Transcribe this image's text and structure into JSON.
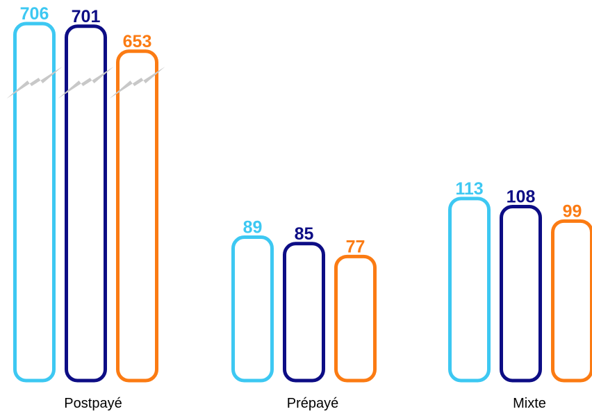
{
  "colors": {
    "series_1": "#3dc8f2",
    "series_2": "#0d0d85",
    "series_3": "#fb7b13",
    "break_mark": "#c8c8c8"
  },
  "chart_data": {
    "type": "bar",
    "categories": [
      "Postpayé",
      "Prépayé",
      "Mixte"
    ],
    "series": [
      {
        "values": [
          706,
          89,
          113
        ]
      },
      {
        "values": [
          701,
          85,
          108
        ]
      },
      {
        "values": [
          653,
          77,
          99
        ]
      }
    ],
    "axis_broken": true,
    "legend": "none",
    "grid": false,
    "xlabel": "",
    "ylabel": ""
  }
}
